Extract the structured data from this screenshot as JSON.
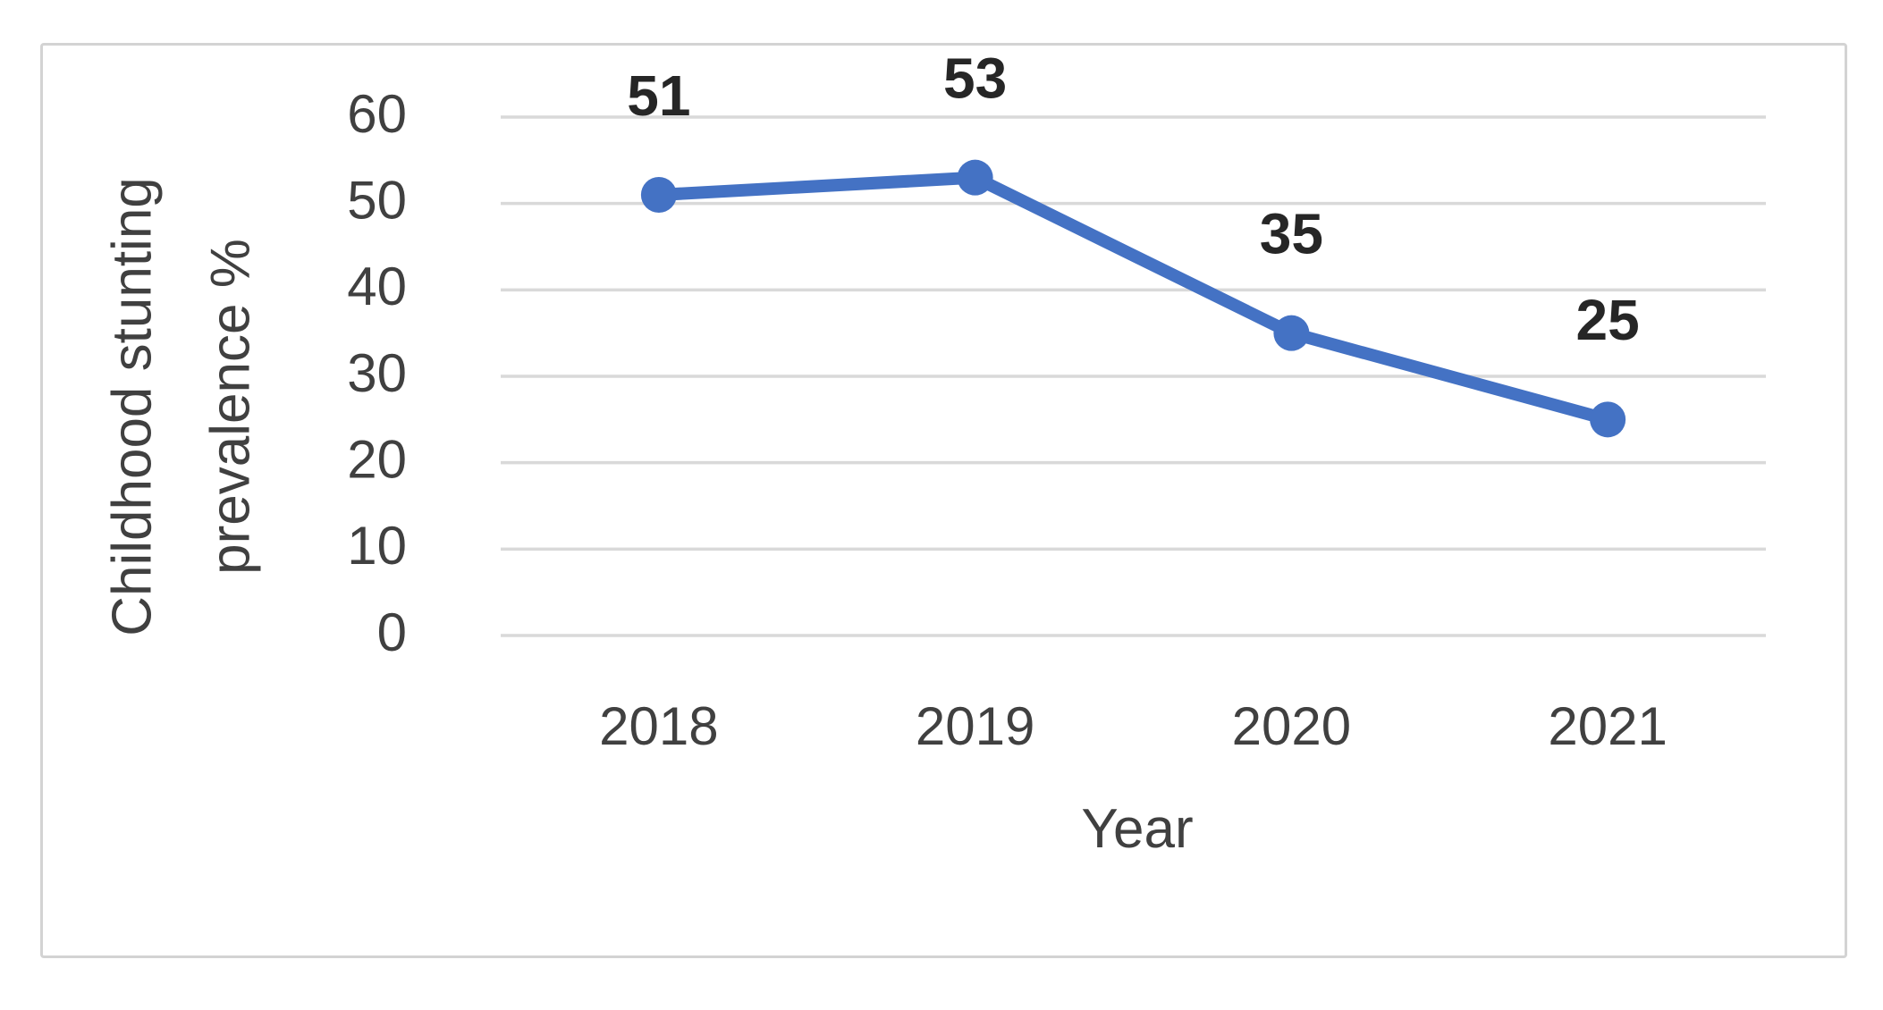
{
  "chart_data": {
    "type": "line",
    "title": "",
    "categories": [
      "2018",
      "2019",
      "2020",
      "2021"
    ],
    "series": [
      {
        "name": "Childhood stunting prevalence %",
        "values": [
          51,
          53,
          35,
          25
        ]
      }
    ],
    "data_labels": [
      "51",
      "53",
      "35",
      "25"
    ],
    "xlabel": "Year",
    "ylabel": "Childhood stunting prevalence %",
    "ylabel_lines": [
      "Childhood stunting",
      "prevalence %"
    ],
    "yticks": [
      0,
      10,
      20,
      30,
      40,
      50,
      60
    ],
    "ylim": [
      0,
      60
    ],
    "grid": "horizontal-only",
    "legend": "none",
    "marker_style": "circle",
    "colors": {
      "line": "#4472C4",
      "marker": "#4472C4",
      "gridline": "#D9D9D9",
      "tick_text": "#404040",
      "axis_title_text": "#404040",
      "data_label_text": "#262626",
      "chart_border": "#D3D3D3",
      "background": "#FFFFFF"
    }
  }
}
